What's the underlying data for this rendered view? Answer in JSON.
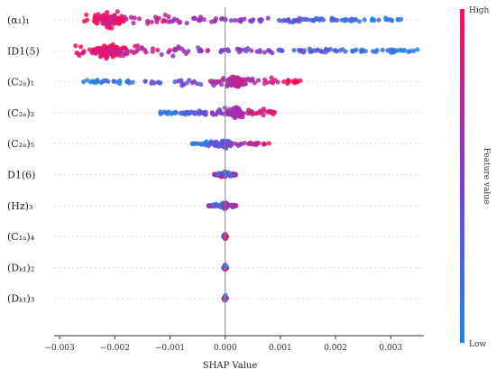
{
  "chart_data": {
    "type": "scatter",
    "subtype": "shap-beeswarm",
    "title": "",
    "xlabel": "SHAP Value",
    "ylabel": "",
    "xlim": [
      -0.0031,
      0.0036
    ],
    "xticks": [
      -0.003,
      -0.002,
      -0.001,
      0.0,
      0.001,
      0.002,
      0.003
    ],
    "xtick_labels": [
      "−0.003",
      "−0.002",
      "−0.001",
      "0.000",
      "0.001",
      "0.002",
      "0.003"
    ],
    "grid": false,
    "colorbar": {
      "label": "Feature value",
      "high_label": "High",
      "low_label": "Low",
      "low_color": "#1e88e5",
      "high_color": "#ff0d57"
    },
    "features": [
      {
        "label": "(α₁)₁",
        "min": -0.0026,
        "max": 0.0032,
        "peak": -0.0021,
        "spread": 1.0,
        "trend": "low-values-positive"
      },
      {
        "label": "ID1(5)",
        "min": -0.0028,
        "max": 0.0035,
        "peak": -0.0021,
        "spread": 1.0,
        "trend": "low-values-positive"
      },
      {
        "label": "(C₂ₐ)₁",
        "min": -0.0026,
        "max": 0.0014,
        "peak": 0.0002,
        "spread": 0.7,
        "trend": "high-values-positive"
      },
      {
        "label": "(C₂ₐ)₂",
        "min": -0.0012,
        "max": 0.0009,
        "peak": 0.0002,
        "spread": 0.6,
        "trend": "high-values-positive"
      },
      {
        "label": "(C₂ₐ)₅",
        "min": -0.0006,
        "max": 0.0008,
        "peak": 0.0,
        "spread": 0.35,
        "trend": "high-values-positive"
      },
      {
        "label": "D1(6)",
        "min": -0.0002,
        "max": 0.0002,
        "peak": 0.0,
        "spread": 0.25,
        "trend": "mixed"
      },
      {
        "label": "(Hz)₃",
        "min": -0.0003,
        "max": 0.0002,
        "peak": 0.0,
        "spread": 0.2,
        "trend": "mixed"
      },
      {
        "label": "(C₁ₐ)₄",
        "min": -3e-05,
        "max": 3e-05,
        "peak": 0.0,
        "spread": 0.12,
        "trend": "mixed"
      },
      {
        "label": "(Dₖ₁)₂",
        "min": -3e-05,
        "max": 3e-05,
        "peak": 0.0,
        "spread": 0.12,
        "trend": "mixed"
      },
      {
        "label": "(Dₖ₁)₃",
        "min": -3e-05,
        "max": 3e-05,
        "peak": 0.0,
        "spread": 0.12,
        "trend": "mixed"
      }
    ]
  }
}
